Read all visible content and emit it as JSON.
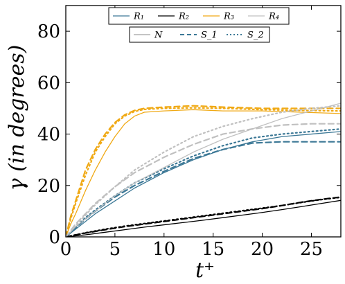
{
  "chart_data": {
    "type": "line",
    "xlabel": "t⁺",
    "ylabel": "γ (in degrees)",
    "xlim": [
      0,
      28
    ],
    "ylim": [
      0,
      90
    ],
    "xticks": [
      0,
      5,
      10,
      15,
      20,
      25
    ],
    "yticks": [
      0,
      20,
      40,
      60,
      80
    ],
    "grid": false,
    "legend_rows": [
      {
        "placement": "top-center",
        "entries": [
          {
            "label": "R₁",
            "color": "#3c7896",
            "dash": "solid"
          },
          {
            "label": "R₂",
            "color": "#000000",
            "dash": "solid"
          },
          {
            "label": "R₃",
            "color": "#f0a914",
            "dash": "solid"
          },
          {
            "label": "R₄",
            "color": "#c0c0c0",
            "dash": "solid"
          }
        ]
      },
      {
        "placement": "top-center",
        "entries": [
          {
            "label": "N",
            "color": "#a0a0a0",
            "dash": "solid"
          },
          {
            "label": "S_1",
            "color": "#3c7896",
            "dash": "dashed"
          },
          {
            "label": "S_2",
            "color": "#3c7896",
            "dash": "dotted"
          }
        ]
      }
    ],
    "series": [
      {
        "name": "R₁ N",
        "color": "#3c7896",
        "dash": "solid",
        "x": [
          0,
          1,
          2,
          3,
          5,
          7,
          10,
          13,
          16,
          19,
          22,
          25,
          28
        ],
        "y": [
          0,
          3,
          6,
          9,
          14,
          19,
          25,
          30,
          34,
          37,
          39,
          40,
          41
        ]
      },
      {
        "name": "R₁ S_1",
        "color": "#3c7896",
        "dash": "dashed",
        "x": [
          0,
          1,
          2,
          3,
          5,
          7,
          10,
          13,
          16,
          19,
          22,
          25,
          28
        ],
        "y": [
          0,
          3.5,
          7,
          10,
          15.5,
          20,
          25.5,
          30.5,
          34,
          36.5,
          37,
          37,
          37
        ]
      },
      {
        "name": "R₁ S_2",
        "color": "#3c7896",
        "dash": "dotted",
        "x": [
          0,
          1,
          2,
          3,
          5,
          7,
          10,
          13,
          16,
          19,
          22,
          25,
          28
        ],
        "y": [
          0,
          3.7,
          7.5,
          10.5,
          16,
          21,
          26.5,
          31.5,
          35.5,
          38.5,
          40,
          41,
          42
        ]
      },
      {
        "name": "R₂ N",
        "color": "#000000",
        "dash": "solid",
        "x": [
          0,
          2,
          4,
          6,
          8,
          10,
          12,
          14,
          16,
          18,
          20,
          22,
          24,
          26,
          28
        ],
        "y": [
          0,
          0.8,
          1.8,
          2.8,
          3.8,
          4.7,
          5.6,
          6.5,
          7.5,
          8.5,
          9.5,
          10.6,
          11.8,
          13.0,
          14.2
        ]
      },
      {
        "name": "R₂ S_1",
        "color": "#000000",
        "dash": "dashed",
        "x": [
          0,
          2,
          4,
          6,
          8,
          10,
          12,
          14,
          16,
          18,
          20,
          22,
          24,
          26,
          28
        ],
        "y": [
          0,
          1.5,
          2.8,
          4.0,
          5.0,
          6.0,
          7.0,
          8.0,
          9.0,
          10.0,
          11.0,
          12.2,
          13.5,
          14.6,
          15.5
        ]
      },
      {
        "name": "R₂ S_2",
        "color": "#000000",
        "dash": "dotted",
        "x": [
          0,
          2,
          4,
          6,
          8,
          10,
          12,
          14,
          16,
          18,
          20,
          22,
          24,
          26,
          28
        ],
        "y": [
          0,
          1.6,
          3.0,
          4.2,
          5.2,
          6.2,
          7.2,
          8.2,
          9.2,
          10.2,
          11.2,
          12.2,
          13.4,
          14.5,
          15.4
        ]
      },
      {
        "name": "R₃ N",
        "color": "#f0a914",
        "dash": "solid",
        "x": [
          0,
          0.5,
          1,
          2,
          3,
          4,
          5,
          6,
          7,
          8,
          10,
          13,
          16,
          20,
          24,
          28
        ],
        "y": [
          0,
          5,
          9,
          18,
          26,
          33,
          39,
          44,
          47,
          48.5,
          49,
          49.5,
          49,
          49,
          48.5,
          48
        ]
      },
      {
        "name": "R₃ S_1",
        "color": "#f0a914",
        "dash": "dashed",
        "x": [
          0,
          0.5,
          1,
          2,
          3,
          4,
          5,
          6,
          7,
          8,
          10,
          13,
          16,
          20,
          24,
          28
        ],
        "y": [
          0,
          8,
          14,
          26,
          34,
          40,
          44.5,
          47.5,
          49.2,
          50,
          50.5,
          51,
          50.5,
          50,
          50,
          50
        ]
      },
      {
        "name": "R₃ S_2",
        "color": "#f0a914",
        "dash": "dotted",
        "x": [
          0,
          0.5,
          1,
          2,
          3,
          4,
          5,
          6,
          7,
          8,
          10,
          13,
          16,
          20,
          24,
          28
        ],
        "y": [
          0,
          7,
          13,
          24,
          33,
          39,
          44,
          47,
          48.8,
          49.6,
          50,
          50.2,
          50,
          49.5,
          49.2,
          49
        ]
      },
      {
        "name": "R₄ N",
        "color": "#c0c0c0",
        "dash": "solid",
        "x": [
          0,
          1,
          2,
          3,
          5,
          7,
          10,
          13,
          16,
          19,
          22,
          25,
          28
        ],
        "y": [
          0,
          4,
          7,
          10,
          16,
          21,
          27,
          33,
          38,
          42,
          46,
          49,
          52
        ]
      },
      {
        "name": "R₄ S_1",
        "color": "#c0c0c0",
        "dash": "dashed",
        "x": [
          0,
          1,
          2,
          3,
          5,
          7,
          10,
          13,
          16,
          19,
          22,
          25,
          28
        ],
        "y": [
          0,
          5,
          9,
          13,
          19.5,
          25,
          31,
          36,
          40,
          42,
          43.5,
          44,
          44
        ]
      },
      {
        "name": "R₄ S_2",
        "color": "#c0c0c0",
        "dash": "dotted",
        "x": [
          0,
          1,
          2,
          3,
          5,
          7,
          10,
          13,
          16,
          19,
          22,
          25,
          28
        ],
        "y": [
          0,
          4.5,
          8.5,
          12.5,
          19.5,
          26,
          33,
          39,
          43,
          46,
          48.5,
          50,
          51
        ]
      }
    ]
  }
}
